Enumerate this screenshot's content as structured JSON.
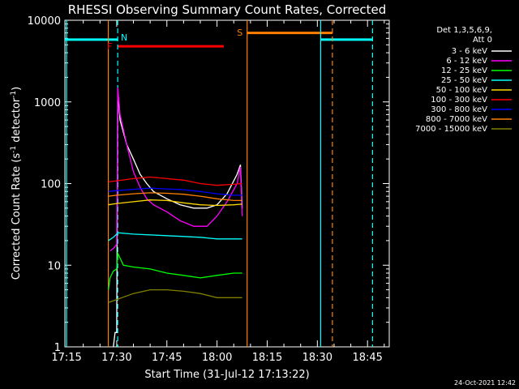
{
  "chart_data": {
    "type": "line",
    "title": "RHESSI Observing Summary Count Rates, Corrected",
    "xlabel": "Start Time (31-Jul-12 17:13:22)",
    "ylabel_main": "Corrected Count Rate (s",
    "ylabel_sup1": "-1",
    "ylabel_mid": " detector",
    "ylabel_sup2": "-1",
    "ylabel_end": ")",
    "yscale": "log",
    "ylim": [
      1,
      10000
    ],
    "xlim_minutes": [
      -0.5,
      96.5
    ],
    "x_ticks": [
      {
        "m": 0,
        "label": "17:15"
      },
      {
        "m": 15,
        "label": "17:30"
      },
      {
        "m": 30,
        "label": "17:45"
      },
      {
        "m": 45,
        "label": "18:00"
      },
      {
        "m": 60,
        "label": "18:15"
      },
      {
        "m": 75,
        "label": "18:30"
      },
      {
        "m": 90,
        "label": "18:45"
      }
    ],
    "y_ticks": [
      {
        "v": 1,
        "label": "1"
      },
      {
        "v": 10,
        "label": "10"
      },
      {
        "v": 100,
        "label": "100"
      },
      {
        "v": 1000,
        "label": "1000"
      },
      {
        "v": 10000,
        "label": "10000"
      }
    ],
    "legend_header": [
      "Det 1,3,5,6,9,",
      "Att 0"
    ],
    "legend_position": "top-right",
    "series": [
      {
        "name": "3 - 6 keV",
        "color": "#ffffff",
        "points": [
          [
            14,
            1
          ],
          [
            14.5,
            1.5
          ],
          [
            15,
            1.5
          ],
          [
            15.3,
            1400
          ],
          [
            16,
            600
          ],
          [
            18,
            300
          ],
          [
            20,
            200
          ],
          [
            22,
            130
          ],
          [
            24,
            100
          ],
          [
            26,
            80
          ],
          [
            30,
            65
          ],
          [
            34,
            55
          ],
          [
            38,
            50
          ],
          [
            42,
            50
          ],
          [
            45,
            55
          ],
          [
            48,
            75
          ],
          [
            51,
            130
          ],
          [
            52,
            170
          ],
          [
            52.5,
            50
          ]
        ]
      },
      {
        "name": "6 - 12 keV",
        "color": "#ff00ff",
        "points": [
          [
            13,
            15
          ],
          [
            14,
            16
          ],
          [
            15,
            18
          ],
          [
            15.3,
            1500
          ],
          [
            16,
            700
          ],
          [
            18,
            300
          ],
          [
            20,
            140
          ],
          [
            22,
            90
          ],
          [
            24,
            65
          ],
          [
            26,
            55
          ],
          [
            30,
            45
          ],
          [
            34,
            35
          ],
          [
            38,
            30
          ],
          [
            42,
            30
          ],
          [
            45,
            40
          ],
          [
            48,
            60
          ],
          [
            51,
            100
          ],
          [
            52,
            160
          ],
          [
            52.5,
            40
          ]
        ]
      },
      {
        "name": "12 - 25 keV",
        "color": "#00ff00",
        "points": [
          [
            12.5,
            5
          ],
          [
            13,
            7
          ],
          [
            14,
            8.5
          ],
          [
            15,
            9
          ],
          [
            15.3,
            14
          ],
          [
            17,
            10
          ],
          [
            20,
            9.5
          ],
          [
            25,
            9
          ],
          [
            30,
            8
          ],
          [
            35,
            7.5
          ],
          [
            40,
            7
          ],
          [
            45,
            7.5
          ],
          [
            50,
            8
          ],
          [
            52,
            8
          ],
          [
            52.5,
            8
          ]
        ]
      },
      {
        "name": "25 - 50 keV",
        "color": "#00ffff",
        "points": [
          [
            12.5,
            20
          ],
          [
            14,
            22
          ],
          [
            15,
            24
          ],
          [
            15.3,
            25
          ],
          [
            20,
            24
          ],
          [
            30,
            23
          ],
          [
            40,
            22
          ],
          [
            45,
            21
          ],
          [
            50,
            21
          ],
          [
            52.5,
            21
          ]
        ]
      },
      {
        "name": "50 - 100 keV",
        "color": "#ffd700",
        "points": [
          [
            12.5,
            55
          ],
          [
            15,
            57
          ],
          [
            20,
            60
          ],
          [
            25,
            63
          ],
          [
            30,
            62
          ],
          [
            35,
            58
          ],
          [
            40,
            55
          ],
          [
            45,
            54
          ],
          [
            50,
            55
          ],
          [
            52.5,
            56
          ]
        ]
      },
      {
        "name": "100 - 300 keV",
        "color": "#ff0000",
        "points": [
          [
            12.5,
            105
          ],
          [
            15,
            108
          ],
          [
            20,
            115
          ],
          [
            25,
            120
          ],
          [
            30,
            115
          ],
          [
            35,
            110
          ],
          [
            40,
            100
          ],
          [
            45,
            95
          ],
          [
            50,
            98
          ],
          [
            52.5,
            100
          ]
        ]
      },
      {
        "name": "300 - 800 keV",
        "color": "#0000ff",
        "points": [
          [
            12.5,
            80
          ],
          [
            15,
            82
          ],
          [
            20,
            85
          ],
          [
            25,
            88
          ],
          [
            30,
            86
          ],
          [
            35,
            84
          ],
          [
            40,
            80
          ],
          [
            45,
            75
          ],
          [
            50,
            72
          ],
          [
            52.5,
            72
          ]
        ]
      },
      {
        "name": "800 - 7000 keV",
        "color": "#ff8000",
        "points": [
          [
            12.5,
            70
          ],
          [
            15,
            72
          ],
          [
            20,
            75
          ],
          [
            25,
            77
          ],
          [
            30,
            76
          ],
          [
            35,
            74
          ],
          [
            40,
            70
          ],
          [
            45,
            65
          ],
          [
            50,
            62
          ],
          [
            52.5,
            62
          ]
        ]
      },
      {
        "name": "7000 - 15000 keV",
        "color": "#808000",
        "points": [
          [
            12.5,
            3.5
          ],
          [
            15,
            3.8
          ],
          [
            20,
            4.5
          ],
          [
            25,
            5
          ],
          [
            30,
            5
          ],
          [
            35,
            4.8
          ],
          [
            40,
            4.5
          ],
          [
            45,
            4
          ],
          [
            50,
            4
          ],
          [
            52.5,
            4
          ]
        ]
      }
    ],
    "annotations": [
      {
        "label": "N",
        "color": "#00ffff",
        "m": 15.3
      },
      {
        "label": "F",
        "color": "#ff0000",
        "m": 15.3
      },
      {
        "label": "S",
        "color": "#ff8000",
        "m": 54
      }
    ],
    "flag_bars": [
      {
        "name": "night",
        "color": "#00ffff",
        "ranges": [
          [
            -0.5,
            15.3
          ],
          [
            76,
            91.5
          ]
        ],
        "value": 5800
      },
      {
        "name": "flare",
        "color": "#ff0000",
        "ranges": [
          [
            15.3,
            47
          ]
        ],
        "value": 4800
      },
      {
        "name": "saa",
        "color": "#ff8000",
        "ranges": [
          [
            54,
            79.5
          ]
        ],
        "value": 7000
      }
    ],
    "vlines": [
      {
        "m": 0,
        "color": "#00ffff",
        "style": "solid"
      },
      {
        "m": 15.3,
        "color": "#00ffff",
        "style": "dashed"
      },
      {
        "m": 12.5,
        "color": "#ff8000",
        "style": "solid"
      },
      {
        "m": 54,
        "color": "#ff8000",
        "style": "solid"
      },
      {
        "m": 76,
        "color": "#00ffff",
        "style": "solid"
      },
      {
        "m": 79.5,
        "color": "#ff8000",
        "style": "dashed"
      },
      {
        "m": 91.5,
        "color": "#00ffff",
        "style": "dashed"
      }
    ]
  },
  "footer_timestamp": "24-Oct-2021 12:42"
}
